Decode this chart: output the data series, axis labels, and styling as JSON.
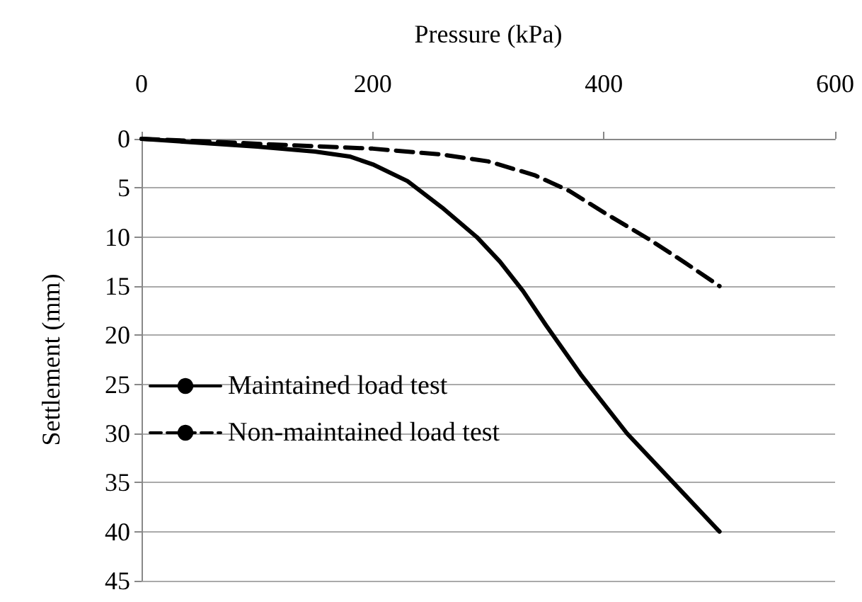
{
  "chart_data": {
    "type": "line",
    "xlabel": "Pressure (kPa)",
    "ylabel": "Settlement (mm)",
    "xlim": [
      0,
      600
    ],
    "xticks": [
      0,
      200,
      400,
      600
    ],
    "ylim": [
      45,
      0
    ],
    "yticks": [
      0,
      5,
      10,
      15,
      20,
      25,
      30,
      35,
      40,
      45
    ],
    "grid": "y",
    "legend": "left",
    "marker": "none",
    "series": [
      {
        "name": "Maintained load test",
        "color": "#000000",
        "line_style": "solid",
        "x": [
          0,
          100,
          150,
          180,
          200,
          230,
          260,
          290,
          310,
          330,
          350,
          380,
          420,
          460,
          500
        ],
        "values": [
          0,
          0.8,
          1.3,
          1.8,
          2.6,
          4.3,
          7,
          10,
          12.5,
          15.5,
          19,
          24,
          30,
          35,
          40
        ]
      },
      {
        "name": "Non-maintained load test",
        "color": "#000000",
        "line_style": "dashed",
        "x": [
          0,
          100,
          200,
          260,
          300,
          340,
          370,
          400,
          440,
          470,
          500
        ],
        "values": [
          0,
          0.5,
          1,
          1.6,
          2.3,
          3.7,
          5.3,
          7.5,
          10.3,
          12.6,
          15
        ]
      }
    ]
  }
}
